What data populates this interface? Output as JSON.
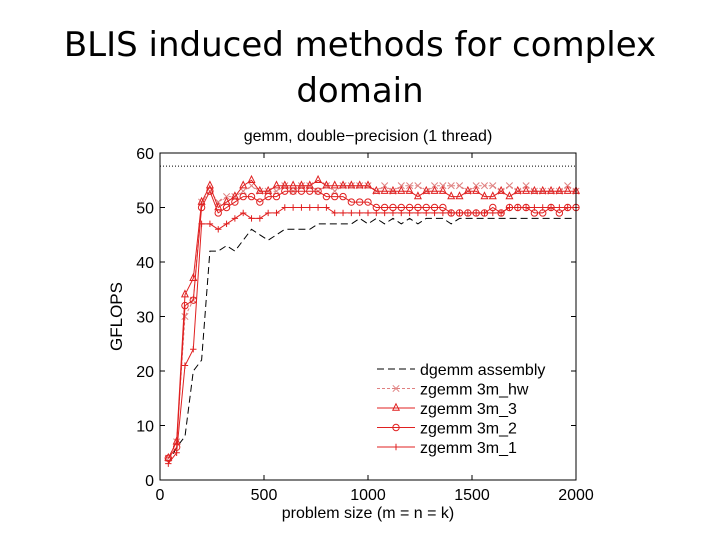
{
  "slide": {
    "title": "BLIS induced methods for complex domain"
  },
  "chart_data": {
    "type": "line",
    "title": "gemm, double−precision (1 thread)",
    "xlabel": "problem size (m = n = k)",
    "ylabel": "GFLOPS",
    "xlim": [
      0,
      2000
    ],
    "ylim": [
      0,
      60
    ],
    "xticks": [
      0,
      500,
      1000,
      1500,
      2000
    ],
    "yticks": [
      0,
      10,
      20,
      30,
      40,
      50,
      60
    ],
    "reference_line": {
      "y": 57.6,
      "style": "dotted"
    },
    "legend_position": "bottom-right",
    "x": [
      40,
      80,
      120,
      160,
      200,
      240,
      280,
      320,
      360,
      400,
      440,
      480,
      520,
      560,
      600,
      640,
      680,
      720,
      760,
      800,
      840,
      880,
      920,
      960,
      1000,
      1040,
      1080,
      1120,
      1160,
      1200,
      1240,
      1280,
      1320,
      1360,
      1400,
      1440,
      1480,
      1520,
      1560,
      1600,
      1640,
      1680,
      1720,
      1760,
      1800,
      1840,
      1880,
      1920,
      1960,
      2000
    ],
    "series": [
      {
        "name": "dgemm assembly",
        "color": "#000000",
        "dash": "7,4",
        "marker": "none",
        "values": [
          3,
          6,
          8,
          20,
          22,
          42,
          42,
          43,
          42,
          44,
          46,
          45,
          44,
          45,
          46,
          46,
          46,
          46,
          47,
          47,
          47,
          47,
          47,
          48,
          47,
          48,
          47,
          48,
          47,
          48,
          47,
          48,
          48,
          48,
          47,
          48,
          48,
          48,
          48,
          48,
          48,
          48,
          48,
          48,
          48,
          48,
          48,
          48,
          48,
          48
        ]
      },
      {
        "name": "zgemm 3m_hw",
        "color": "#e08080",
        "dash": "3,2",
        "marker": "x",
        "values": [
          4,
          7,
          30,
          33,
          51,
          53,
          51,
          52,
          52,
          53,
          54,
          53,
          53,
          53,
          54,
          53,
          54,
          54,
          53,
          54,
          53,
          54,
          54,
          54,
          54,
          53,
          54,
          53,
          54,
          54,
          54,
          53,
          54,
          54,
          54,
          54,
          53,
          54,
          54,
          54,
          53,
          54,
          53,
          54,
          53,
          53,
          53,
          53,
          54,
          53
        ]
      },
      {
        "name": "zgemm 3m_3",
        "color": "#e02020",
        "dash": "",
        "marker": "triangle",
        "values": [
          4,
          7,
          34,
          37,
          51,
          54,
          50,
          51,
          52,
          54,
          55,
          53,
          53,
          54,
          54,
          54,
          54,
          54,
          55,
          54,
          54,
          54,
          54,
          54,
          54,
          53,
          53,
          53,
          53,
          53,
          52,
          53,
          53,
          53,
          52,
          52,
          53,
          53,
          52,
          52,
          53,
          52,
          53,
          53,
          53,
          53,
          53,
          53,
          53,
          53
        ]
      },
      {
        "name": "zgemm 3m_2",
        "color": "#e02020",
        "dash": "",
        "marker": "circle",
        "values": [
          4,
          6,
          32,
          33,
          50,
          53,
          49,
          50,
          51,
          52,
          52,
          51,
          52,
          52,
          53,
          53,
          53,
          53,
          53,
          52,
          52,
          52,
          51,
          51,
          51,
          50,
          50,
          50,
          50,
          50,
          50,
          50,
          50,
          50,
          49,
          49,
          49,
          49,
          49,
          50,
          49,
          50,
          50,
          50,
          49,
          49,
          50,
          49,
          50,
          50
        ]
      },
      {
        "name": "zgemm 3m_1",
        "color": "#e02020",
        "dash": "",
        "marker": "plus",
        "values": [
          3,
          5,
          21,
          24,
          47,
          47,
          46,
          47,
          48,
          49,
          48,
          48,
          49,
          49,
          50,
          50,
          50,
          50,
          50,
          50,
          49,
          49,
          49,
          49,
          49,
          49,
          49,
          49,
          49,
          49,
          49,
          49,
          49,
          49,
          49,
          49,
          49,
          49,
          49,
          49,
          49,
          50,
          50,
          50,
          50,
          50,
          50,
          50,
          50,
          50
        ]
      }
    ]
  }
}
